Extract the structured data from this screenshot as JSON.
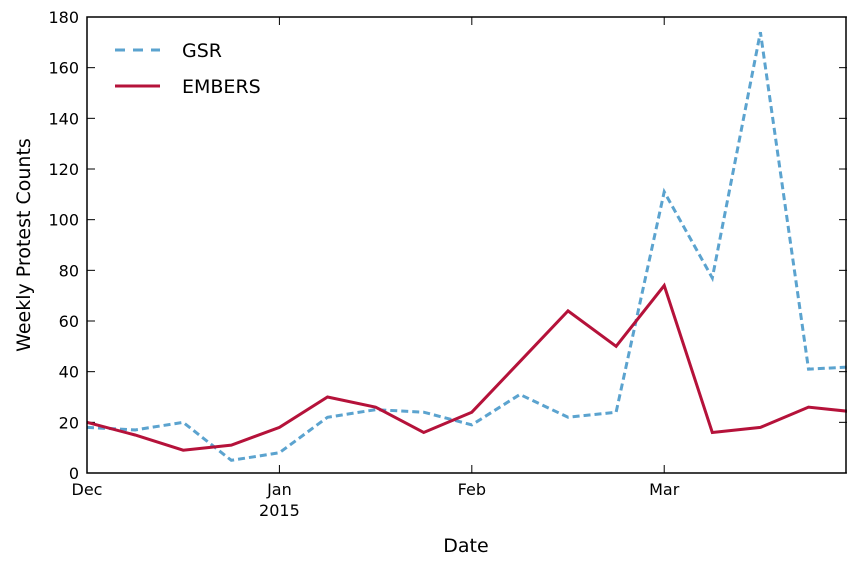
{
  "chart_data": {
    "type": "line",
    "xlabel": "Date",
    "ylabel": "Weekly Protest Counts",
    "x": [
      0,
      1,
      2,
      3,
      4,
      5,
      6,
      7,
      8,
      9,
      10,
      11,
      12,
      13,
      14,
      15,
      16
    ],
    "xlim": [
      0,
      15.8
    ],
    "xticks": [
      {
        "value": 0,
        "label": "Dec"
      },
      {
        "value": 4,
        "label": "Jan"
      },
      {
        "value": 8,
        "label": "Feb"
      },
      {
        "value": 12,
        "label": "Mar"
      }
    ],
    "year_label": "2015",
    "ylim": [
      0,
      180
    ],
    "yticks": [
      0,
      20,
      40,
      60,
      80,
      100,
      120,
      140,
      160,
      180
    ],
    "legend": "upper left",
    "series": [
      {
        "name": "GSR",
        "color": "#5ba3cf",
        "dashed": true,
        "values": [
          18,
          17,
          20,
          5,
          8,
          22,
          25,
          24,
          19,
          31,
          22,
          24,
          111,
          77,
          174,
          41,
          42
        ]
      },
      {
        "name": "EMBERS",
        "color": "#b5123a",
        "dashed": false,
        "values": [
          20,
          15,
          9,
          11,
          18,
          30,
          26,
          16,
          24,
          44,
          64,
          50,
          74,
          16,
          18,
          26,
          24
        ]
      }
    ]
  }
}
